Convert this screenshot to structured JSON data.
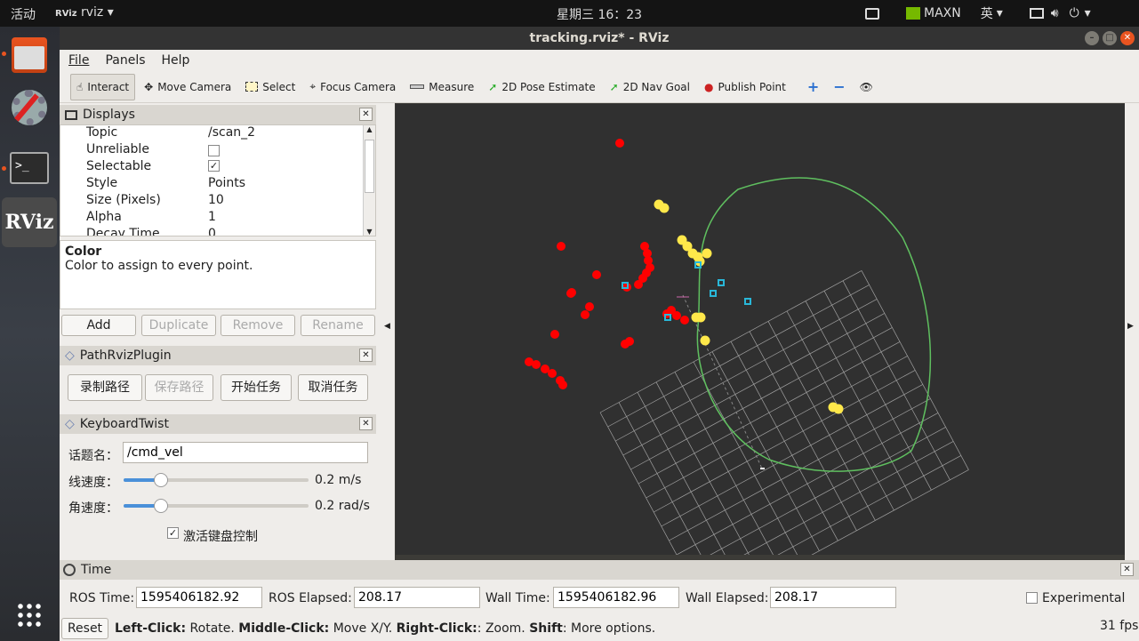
{
  "system": {
    "activities": "活动",
    "app_name": "rviz",
    "clock": "星期三 16：23",
    "maxn": "MAXN",
    "ime": "英"
  },
  "window": {
    "title": "tracking.rviz* - RViz"
  },
  "menu": [
    "File",
    "Panels",
    "Help"
  ],
  "toolbar": {
    "interact": "Interact",
    "move_camera": "Move Camera",
    "select": "Select",
    "focus_camera": "Focus Camera",
    "measure": "Measure",
    "pose_estimate": "2D Pose Estimate",
    "nav_goal": "2D Nav Goal",
    "publish_point": "Publish Point"
  },
  "displays": {
    "title": "Displays",
    "props": [
      {
        "key": "Topic",
        "value": "/scan_2"
      },
      {
        "key": "Unreliable",
        "value": ""
      },
      {
        "key": "Selectable",
        "value": "✓"
      },
      {
        "key": "Style",
        "value": "Points"
      },
      {
        "key": "Size (Pixels)",
        "value": "10"
      },
      {
        "key": "Alpha",
        "value": "1"
      },
      {
        "key": "Decay Time",
        "value": "0"
      }
    ],
    "desc_title": "Color",
    "desc_text": "Color to assign to every point.",
    "add": "Add",
    "duplicate": "Duplicate",
    "remove": "Remove",
    "rename": "Rename"
  },
  "path_plugin": {
    "title": "PathRvizPlugin",
    "b1": "录制路径",
    "b2": "保存路径",
    "b3": "开始任务",
    "b4": "取消任务"
  },
  "keyboard": {
    "title": "KeyboardTwist",
    "topic_label": "话题名：",
    "topic_value": "/cmd_vel",
    "linear_label": "线速度：",
    "linear_value": "0.2 m/s",
    "linear_level": 0.2,
    "angular_label": "角速度：",
    "angular_value": "0.2 rad/s",
    "angular_level": 0.2,
    "enable_label": "激活键盘控制"
  },
  "time": {
    "title": "Time",
    "ros_time_label": "ROS Time:",
    "ros_time": "1595406182.92",
    "ros_elapsed_label": "ROS Elapsed:",
    "ros_elapsed": "208.17",
    "wall_time_label": "Wall Time:",
    "wall_time": "1595406182.96",
    "wall_elapsed_label": "Wall Elapsed:",
    "wall_elapsed": "208.17",
    "experimental": "Experimental"
  },
  "status": {
    "reset": "Reset",
    "l1": "Left-Click:",
    "t1": " Rotate. ",
    "l2": "Middle-Click:",
    "t2": " Move X/Y. ",
    "l3": "Right-Click:",
    "t3": ": Zoom. ",
    "l4": "Shift",
    "t4": ": More options.",
    "fps": "31 fps"
  },
  "colors": {
    "red_points": "#ff0000",
    "yellow_points": "#ffe84a",
    "path": "#5fbf5f",
    "grid": "#a0a0a0",
    "background": "#303030"
  }
}
